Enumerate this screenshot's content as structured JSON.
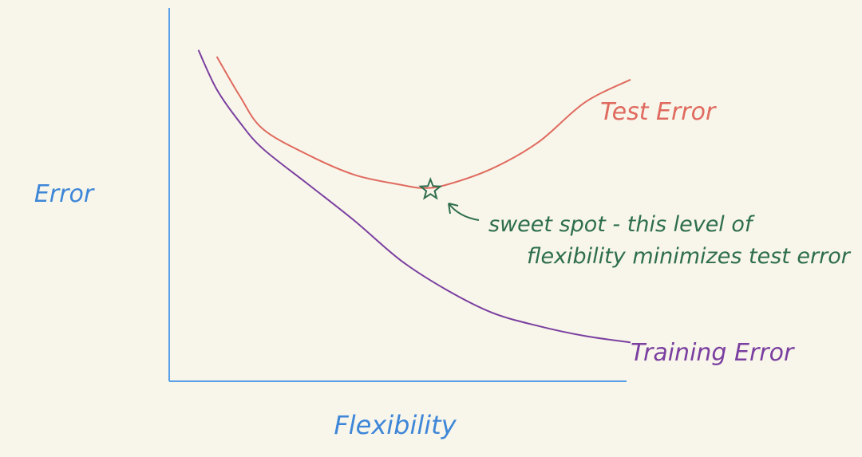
{
  "chart_data": {
    "type": "line",
    "xlabel": "Flexibility",
    "ylabel": "Error",
    "xlim": [
      0,
      100
    ],
    "ylim": [
      0,
      100
    ],
    "grid": false,
    "series": [
      {
        "name": "Test Error",
        "color": "#e06a5f",
        "x": [
          10,
          15,
          20,
          30,
          40,
          50,
          55,
          60,
          70,
          80,
          90,
          100
        ],
        "y": [
          92,
          80,
          70,
          62,
          56,
          53,
          52,
          53,
          58,
          66,
          78,
          85
        ]
      },
      {
        "name": "Training Error",
        "color": "#7a3fa0",
        "x": [
          6,
          10,
          15,
          20,
          30,
          40,
          50,
          60,
          70,
          80,
          90,
          100
        ],
        "y": [
          94,
          82,
          72,
          64,
          53,
          42,
          30,
          21,
          14,
          10,
          7,
          5
        ]
      }
    ],
    "annotations": [
      {
        "text_lines": [
          "sweet spot - this level of",
          "flexibility minimizes test error"
        ],
        "x": 57,
        "y": 52,
        "marker": "star",
        "color": "#2e6e4e"
      }
    ],
    "axis_color": "#5aa0e6",
    "label_color": "#3d86d8"
  }
}
